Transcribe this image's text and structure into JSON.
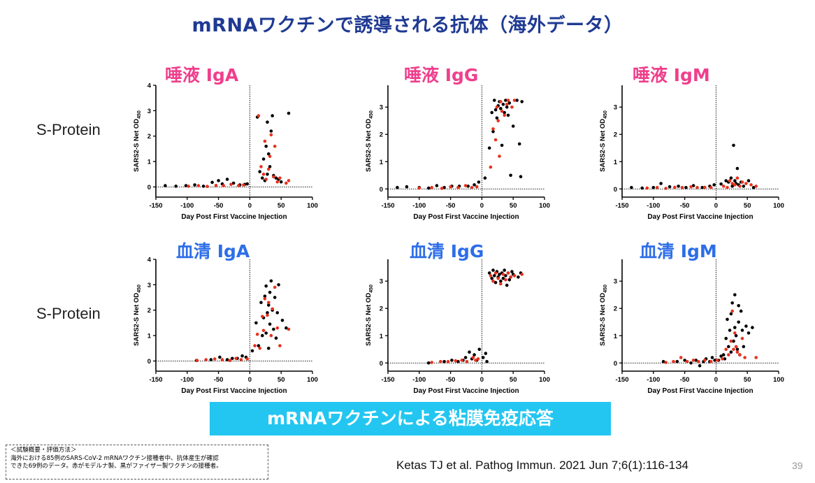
{
  "slide": {
    "title": "mRNAワクチンで誘導される抗体（海外データ）",
    "row_labels": [
      "S-Protein",
      "S-Protein"
    ],
    "banner": "mRNAワクチンによる粘膜免疫応答",
    "notes": [
      "＜試験概要・評価方法＞",
      "海外における85例のSARS-CoV-2 mRNAワクチン接種者中、抗体産生が確認",
      "できた69例のデータ。赤がモデルナ製、黒がファイザー製ワクチンの接種者。"
    ],
    "citation": "Ketas TJ et al. Pathog Immun. 2021 Jun 7;6(1):116-134",
    "page_number": "39",
    "colors": {
      "title": "#1f3a93",
      "saliva_title": "#ef3f8c",
      "serum_title": "#2d6ee8",
      "banner": "#23c6f0",
      "moderna": "#e8311d",
      "pfizer": "#000000"
    },
    "series_names": [
      "モデルナ製",
      "ファイザー製"
    ]
  },
  "chart_data": [
    {
      "type": "scatter",
      "title": "唾液 IgA",
      "xlabel": "Day Post First Vaccine Injection",
      "ylabel": "SARS2-S Net OD",
      "ylabel_sub": "450",
      "xlim": [
        -150,
        100
      ],
      "ylim": [
        -0.4,
        4
      ],
      "xticks": [
        "-150",
        "-100",
        "-50",
        "0",
        "50",
        "100"
      ],
      "yticks": [
        "0",
        "1",
        "2",
        "3",
        "4"
      ],
      "vline_x": 0,
      "hline_y": 0,
      "grid": false,
      "series": [
        {
          "color": "#000000",
          "x": [
            -135,
            -118,
            -102,
            -88,
            -74,
            -60,
            -50,
            -44,
            -36,
            -26,
            -16,
            -8,
            -4,
            12,
            16,
            20,
            22,
            24,
            26,
            28,
            28,
            30,
            32,
            34,
            36,
            38,
            42,
            46,
            50,
            62
          ],
          "y": [
            0.05,
            0.03,
            0.05,
            0.08,
            0.03,
            0.18,
            0.25,
            0.12,
            0.3,
            0.15,
            0.08,
            0.1,
            0.12,
            2.75,
            0.6,
            0.35,
            1.1,
            0.25,
            1.6,
            0.5,
            2.55,
            1.3,
            0.8,
            2.2,
            2.8,
            0.45,
            0.35,
            0.3,
            0.2,
            2.9
          ]
        },
        {
          "color": "#e8311d",
          "x": [
            -98,
            -82,
            -68,
            -54,
            -42,
            -30,
            -18,
            -10,
            14,
            18,
            22,
            24,
            26,
            30,
            32,
            34,
            38,
            40,
            44,
            48,
            58,
            62
          ],
          "y": [
            0.03,
            0.05,
            0.02,
            0.06,
            0.05,
            0.1,
            0.05,
            0.08,
            2.8,
            0.8,
            0.5,
            1.8,
            0.3,
            0.7,
            1.2,
            2.05,
            0.4,
            1.6,
            0.2,
            0.35,
            0.15,
            0.25
          ]
        }
      ]
    },
    {
      "type": "scatter",
      "title": "唾液 IgG",
      "xlabel": "Day Post First Vaccine Injection",
      "ylabel": "SARS2-S Net OD",
      "ylabel_sub": "450",
      "xlim": [
        -150,
        100
      ],
      "ylim": [
        -0.3,
        3.8
      ],
      "xticks": [
        "-150",
        "-100",
        "-50",
        "0",
        "50",
        "100"
      ],
      "yticks": [
        "0",
        "1",
        "2",
        "3"
      ],
      "vline_x": 0,
      "hline_y": 0,
      "grid": false,
      "series": [
        {
          "color": "#000000",
          "x": [
            -135,
            -120,
            -100,
            -85,
            -72,
            -60,
            -48,
            -36,
            -22,
            -12,
            -5,
            5,
            12,
            16,
            18,
            20,
            22,
            24,
            26,
            28,
            30,
            32,
            34,
            36,
            38,
            40,
            42,
            44,
            46,
            50,
            56,
            60,
            62,
            64
          ],
          "y": [
            0.05,
            0.08,
            0.05,
            0.03,
            0.12,
            0.05,
            0.1,
            0.1,
            0.1,
            0.15,
            0.25,
            0.4,
            1.5,
            2.8,
            2.1,
            3.25,
            2.9,
            2.6,
            3.05,
            3.2,
            2.95,
            1.6,
            3.1,
            2.8,
            3.25,
            3.0,
            2.7,
            3.15,
            0.5,
            2.3,
            3.25,
            1.65,
            0.45,
            3.2
          ]
        },
        {
          "color": "#e8311d",
          "x": [
            -100,
            -80,
            -64,
            -50,
            -38,
            -26,
            -16,
            -8,
            14,
            18,
            22,
            24,
            26,
            28,
            30,
            32,
            36,
            40,
            42,
            48,
            52
          ],
          "y": [
            0.03,
            0.05,
            0.02,
            0.08,
            0.05,
            0.12,
            0.05,
            0.08,
            0.8,
            2.2,
            1.8,
            3.0,
            2.5,
            1.2,
            3.2,
            2.85,
            2.7,
            3.1,
            3.25,
            3.0,
            3.25
          ]
        }
      ]
    },
    {
      "type": "scatter",
      "title": "唾液 IgM",
      "xlabel": "Day Post First Vaccine Injection",
      "ylabel": "SARS2-S Net OD",
      "ylabel_sub": "450",
      "xlim": [
        -150,
        100
      ],
      "ylim": [
        -0.3,
        3.8
      ],
      "xticks": [
        "-150",
        "-100",
        "-50",
        "0",
        "50",
        "100"
      ],
      "yticks": [
        "0",
        "1",
        "2",
        "3"
      ],
      "vline_x": 0,
      "hline_y": 0,
      "grid": false,
      "series": [
        {
          "color": "#000000",
          "x": [
            -135,
            -118,
            -100,
            -88,
            -74,
            -60,
            -48,
            -36,
            -22,
            -10,
            -3,
            8,
            16,
            20,
            24,
            26,
            28,
            30,
            32,
            34,
            36,
            40,
            44,
            52,
            60
          ],
          "y": [
            0.05,
            0.03,
            0.05,
            0.2,
            0.08,
            0.1,
            0.05,
            0.12,
            0.05,
            0.1,
            0.15,
            0.18,
            0.3,
            0.25,
            0.4,
            0.1,
            1.6,
            0.3,
            0.2,
            0.75,
            0.15,
            0.25,
            0.1,
            0.3,
            0.05
          ]
        },
        {
          "color": "#e8311d",
          "x": [
            -110,
            -94,
            -80,
            -66,
            -54,
            -40,
            -30,
            -18,
            -8,
            12,
            18,
            22,
            26,
            30,
            34,
            38,
            42,
            48,
            56,
            64
          ],
          "y": [
            0.03,
            0.05,
            0.02,
            0.06,
            0.05,
            0.08,
            0.05,
            0.06,
            0.05,
            0.1,
            0.05,
            0.3,
            0.2,
            0.15,
            0.4,
            0.1,
            0.25,
            0.2,
            0.15,
            0.1
          ]
        }
      ]
    },
    {
      "type": "scatter",
      "title": "血清 IgA",
      "xlabel": "Day Post First Vaccine Injection",
      "ylabel": "SARS2-S Net OD",
      "ylabel_sub": "450",
      "xlim": [
        -150,
        100
      ],
      "ylim": [
        -0.4,
        4
      ],
      "xticks": [
        "-150",
        "-100",
        "-50",
        "0",
        "50",
        "100"
      ],
      "yticks": [
        "0",
        "1",
        "2",
        "3",
        "4"
      ],
      "vline_x": 0,
      "hline_y": 0,
      "grid": false,
      "series": [
        {
          "color": "#000000",
          "x": [
            -85,
            -62,
            -48,
            -36,
            -28,
            -20,
            -12,
            -6,
            4,
            10,
            14,
            18,
            20,
            22,
            24,
            26,
            26,
            28,
            30,
            30,
            32,
            32,
            34,
            36,
            38,
            40,
            42,
            44,
            46,
            52,
            58
          ],
          "y": [
            0.02,
            0.05,
            0.15,
            0.05,
            0.1,
            0.1,
            0.2,
            0.15,
            0.4,
            1.5,
            0.6,
            2.3,
            1.0,
            1.7,
            2.55,
            1.1,
            2.95,
            1.9,
            0.5,
            2.2,
            1.45,
            2.7,
            3.15,
            2.0,
            1.25,
            2.5,
            0.9,
            1.9,
            3.0,
            1.6,
            1.3
          ]
        },
        {
          "color": "#e8311d",
          "x": [
            -84,
            -70,
            -56,
            -44,
            -32,
            -22,
            -14,
            -4,
            8,
            12,
            16,
            20,
            22,
            24,
            28,
            30,
            34,
            36,
            40,
            44,
            48,
            62
          ],
          "y": [
            0.02,
            0.05,
            0.08,
            0.05,
            0.02,
            0.1,
            0.05,
            0.08,
            0.6,
            1.05,
            0.5,
            1.75,
            1.2,
            2.45,
            1.8,
            2.3,
            1.0,
            2.05,
            2.9,
            1.3,
            0.6,
            1.25
          ]
        }
      ]
    },
    {
      "type": "scatter",
      "title": "血清 IgG",
      "xlabel": "Day Post First Vaccine Injection",
      "ylabel": "SARS2-S Net OD",
      "ylabel_sub": "450",
      "xlim": [
        -150,
        100
      ],
      "ylim": [
        -0.3,
        3.8
      ],
      "xticks": [
        "-150",
        "-100",
        "-50",
        "0",
        "50",
        "100"
      ],
      "yticks": [
        "0",
        "1",
        "2",
        "3"
      ],
      "vline_x": 0,
      "hline_y": 0,
      "grid": false,
      "series": [
        {
          "color": "#000000",
          "x": [
            -85,
            -60,
            -48,
            -38,
            -30,
            -26,
            -20,
            -16,
            -12,
            -8,
            -4,
            2,
            6,
            8,
            12,
            16,
            18,
            20,
            22,
            24,
            26,
            28,
            30,
            32,
            34,
            36,
            38,
            40,
            42,
            44,
            46,
            48,
            50,
            52,
            58,
            62
          ],
          "y": [
            0.0,
            0.05,
            0.1,
            0.05,
            0.1,
            0.2,
            0.4,
            0.15,
            0.3,
            0.1,
            0.5,
            0.2,
            0.35,
            0.05,
            3.3,
            3.1,
            3.4,
            3.2,
            2.95,
            3.35,
            3.15,
            3.25,
            3.0,
            3.3,
            3.1,
            3.4,
            3.2,
            2.85,
            3.3,
            3.05,
            3.15,
            3.35,
            3.25,
            3.2,
            3.15,
            3.3
          ]
        },
        {
          "color": "#e8311d",
          "x": [
            -80,
            -66,
            -54,
            -42,
            -32,
            -24,
            -14,
            -10,
            -6,
            14,
            18,
            22,
            26,
            30,
            34,
            38,
            42,
            46,
            52,
            64
          ],
          "y": [
            0.02,
            0.05,
            0.05,
            0.08,
            0.1,
            0.05,
            0.2,
            0.1,
            0.15,
            3.2,
            3.0,
            3.3,
            3.1,
            2.9,
            3.25,
            3.05,
            3.3,
            3.15,
            3.2,
            3.25
          ]
        }
      ]
    },
    {
      "type": "scatter",
      "title": "血清 IgM",
      "xlabel": "Day Post First Vaccine Injection",
      "ylabel": "SARS2-S Net OD",
      "ylabel_sub": "450",
      "xlim": [
        -150,
        100
      ],
      "ylim": [
        -0.3,
        3.8
      ],
      "xticks": [
        "-150",
        "-100",
        "-50",
        "0",
        "50",
        "100"
      ],
      "yticks": [
        "0",
        "1",
        "2",
        "3"
      ],
      "vline_x": 0,
      "hline_y": 0,
      "grid": false,
      "series": [
        {
          "color": "#000000",
          "x": [
            -84,
            -62,
            -50,
            -40,
            -32,
            -26,
            -20,
            -16,
            -10,
            -6,
            -2,
            4,
            8,
            12,
            14,
            16,
            18,
            20,
            22,
            24,
            24,
            26,
            28,
            30,
            30,
            32,
            34,
            36,
            36,
            38,
            40,
            42,
            44,
            48,
            52,
            58
          ],
          "y": [
            0.05,
            0.05,
            0.1,
            0.0,
            0.1,
            -0.1,
            0.05,
            0.15,
            0.05,
            0.2,
            0.1,
            0.1,
            0.25,
            0.3,
            0.15,
            0.9,
            1.6,
            0.6,
            1.2,
            1.8,
            0.4,
            2.2,
            0.8,
            1.3,
            2.5,
            1.0,
            0.5,
            1.5,
            2.1,
            0.3,
            1.9,
            1.2,
            0.6,
            1.35,
            1.1,
            1.3
          ]
        },
        {
          "color": "#e8311d",
          "x": [
            -80,
            -68,
            -56,
            -46,
            -36,
            -28,
            -18,
            -8,
            2,
            10,
            16,
            20,
            24,
            26,
            28,
            30,
            32,
            34,
            38,
            42,
            46,
            64
          ],
          "y": [
            0.02,
            0.05,
            0.2,
            0.05,
            0.1,
            0.05,
            0.1,
            0.05,
            0.1,
            0.15,
            0.5,
            0.3,
            0.8,
            1.9,
            0.5,
            1.1,
            0.6,
            0.4,
            0.3,
            0.9,
            0.2,
            0.2
          ]
        }
      ]
    }
  ]
}
